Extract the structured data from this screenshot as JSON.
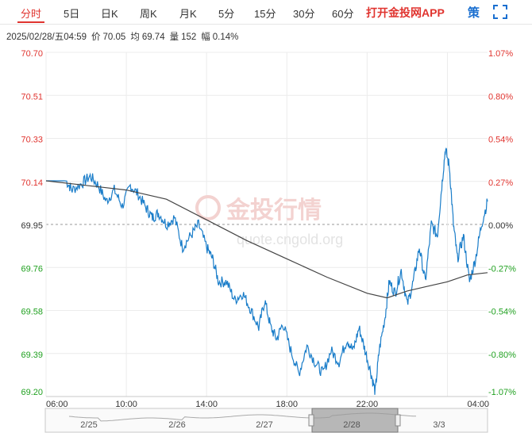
{
  "tabs": [
    {
      "label": "分时",
      "active": true
    },
    {
      "label": "5日"
    },
    {
      "label": "日K"
    },
    {
      "label": "周K"
    },
    {
      "label": "月K"
    },
    {
      "label": "5分"
    },
    {
      "label": "15分"
    },
    {
      "label": "30分"
    },
    {
      "label": "60分"
    }
  ],
  "app_link": "打开金投网APP",
  "policy_button": "策",
  "fullscreen_icon": "expand-icon",
  "info": {
    "datetime": "2025/02/28/五04:59",
    "price_label": "价",
    "price": "70.05",
    "avg_label": "均",
    "avg": "69.74",
    "vol_label": "量",
    "vol": "152",
    "amp_label": "幅",
    "amp": "0.14%"
  },
  "watermark": {
    "text": "金投行情",
    "url": "quote.cngold.org"
  },
  "colors": {
    "up": "#e0342f",
    "down": "#21a121",
    "price_line": "#1a7dc9",
    "avg_line": "#444444",
    "accent": "#e0342f"
  },
  "chart_data": {
    "type": "line",
    "title": "",
    "y_ticks_left": [
      "70.70",
      "70.51",
      "70.33",
      "70.14",
      "69.95",
      "69.76",
      "69.58",
      "69.39",
      "69.20"
    ],
    "y_ticks_right": [
      "1.07%",
      "0.80%",
      "0.54%",
      "0.27%",
      "0.00%",
      "-0.27%",
      "-0.54%",
      "-0.80%",
      "-1.07%"
    ],
    "ylim": [
      69.2,
      70.7
    ],
    "base_price": 69.95,
    "x_ticks": [
      "06:00",
      "10:00",
      "14:00",
      "18:00",
      "22:00",
      "04:00"
    ],
    "x_range_hours": [
      0,
      22
    ],
    "series": [
      {
        "role": "price",
        "points": [
          [
            0,
            70.14
          ],
          [
            1,
            70.14
          ],
          [
            1.3,
            70.1
          ],
          [
            1.8,
            70.13
          ],
          [
            2.2,
            70.16
          ],
          [
            2.6,
            70.12
          ],
          [
            3.0,
            70.05
          ],
          [
            3.4,
            70.1
          ],
          [
            3.8,
            70.03
          ],
          [
            4.2,
            70.12
          ],
          [
            4.6,
            70.08
          ],
          [
            5.0,
            70.02
          ],
          [
            5.3,
            69.98
          ],
          [
            5.6,
            70.0
          ],
          [
            6.0,
            69.95
          ],
          [
            6.4,
            69.98
          ],
          [
            6.8,
            69.85
          ],
          [
            7.2,
            69.9
          ],
          [
            7.6,
            69.95
          ],
          [
            8.0,
            69.85
          ],
          [
            8.3,
            69.8
          ],
          [
            8.6,
            69.7
          ],
          [
            9.0,
            69.7
          ],
          [
            9.4,
            69.62
          ],
          [
            9.8,
            69.65
          ],
          [
            10.2,
            69.58
          ],
          [
            10.6,
            69.5
          ],
          [
            10.9,
            69.62
          ],
          [
            11.2,
            69.5
          ],
          [
            11.5,
            69.45
          ],
          [
            11.8,
            69.52
          ],
          [
            12.2,
            69.4
          ],
          [
            12.6,
            69.3
          ],
          [
            13.0,
            69.42
          ],
          [
            13.4,
            69.35
          ],
          [
            13.8,
            69.3
          ],
          [
            14.2,
            69.4
          ],
          [
            14.6,
            69.35
          ],
          [
            15.0,
            69.45
          ],
          [
            15.3,
            69.4
          ],
          [
            15.6,
            69.5
          ],
          [
            15.9,
            69.4
          ],
          [
            16.2,
            69.3
          ],
          [
            16.4,
            69.22
          ],
          [
            16.6,
            69.4
          ],
          [
            16.9,
            69.55
          ],
          [
            17.1,
            69.7
          ],
          [
            17.4,
            69.65
          ],
          [
            17.7,
            69.75
          ],
          [
            18.0,
            69.6
          ],
          [
            18.3,
            69.7
          ],
          [
            18.6,
            69.85
          ],
          [
            18.9,
            69.7
          ],
          [
            19.2,
            69.95
          ],
          [
            19.5,
            69.9
          ],
          [
            19.7,
            70.1
          ],
          [
            19.9,
            70.28
          ],
          [
            20.1,
            70.2
          ],
          [
            20.3,
            69.95
          ],
          [
            20.5,
            69.8
          ],
          [
            20.8,
            69.9
          ],
          [
            21.1,
            69.7
          ],
          [
            21.4,
            69.8
          ],
          [
            21.7,
            69.95
          ],
          [
            22.0,
            70.05
          ]
        ]
      },
      {
        "role": "average",
        "points": [
          [
            0,
            70.14
          ],
          [
            2,
            70.12
          ],
          [
            4,
            70.1
          ],
          [
            6,
            70.06
          ],
          [
            8,
            69.97
          ],
          [
            10,
            69.88
          ],
          [
            12,
            69.8
          ],
          [
            14,
            69.72
          ],
          [
            16,
            69.65
          ],
          [
            17,
            69.63
          ],
          [
            18,
            69.66
          ],
          [
            19,
            69.68
          ],
          [
            20,
            69.7
          ],
          [
            21,
            69.73
          ],
          [
            22,
            69.74
          ]
        ]
      }
    ]
  },
  "navigator": {
    "dates": [
      "2/25",
      "2/26",
      "2/27",
      "2/28",
      "3/3"
    ]
  }
}
